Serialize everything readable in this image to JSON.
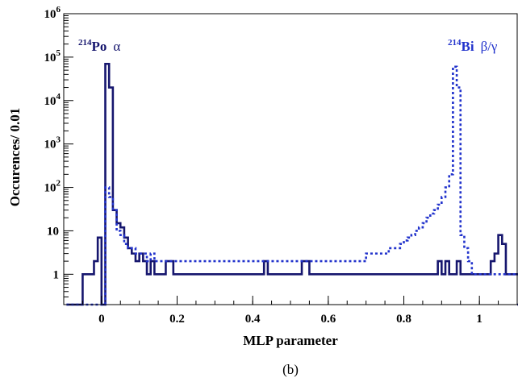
{
  "chart_data": {
    "type": "histogram",
    "xlabel": "MLP parameter",
    "ylabel": "Occurences/ 0.01",
    "caption": "(b)",
    "xlim": [
      -0.1,
      1.1
    ],
    "ylim": [
      0.2,
      1000000
    ],
    "yscale": "log",
    "bin_width": 0.01,
    "x_ticks": [
      "0",
      "0.2",
      "0.4",
      "0.6",
      "0.8",
      "1"
    ],
    "x_tick_values": [
      0,
      0.2,
      0.4,
      0.6,
      0.8,
      1.0
    ],
    "y_ticks": [
      {
        "base": "1",
        "exp": "",
        "value": 1
      },
      {
        "base": "10",
        "exp": "",
        "value": 10
      },
      {
        "base": "10",
        "exp": "2",
        "value": 100
      },
      {
        "base": "10",
        "exp": "3",
        "value": 1000
      },
      {
        "base": "10",
        "exp": "4",
        "value": 10000
      },
      {
        "base": "10",
        "exp": "5",
        "value": 100000
      },
      {
        "base": "10",
        "exp": "6",
        "value": 1000000
      }
    ],
    "annotations": {
      "po": {
        "sup": "214",
        "name": "Po",
        "particle": "α"
      },
      "bi": {
        "sup": "214",
        "name": "Bi",
        "particle": "β/γ"
      }
    },
    "series": [
      {
        "style": "solid",
        "color": "#16166e",
        "x_start": -0.05,
        "values": [
          1,
          1,
          1,
          2,
          7,
          0,
          70000,
          20000,
          30,
          15,
          12,
          7,
          4,
          3,
          2,
          3,
          2,
          1,
          2,
          1,
          1,
          1,
          2,
          2,
          1,
          1,
          1,
          1,
          1,
          1,
          1,
          1,
          1,
          1,
          1,
          1,
          1,
          1,
          1,
          1,
          1,
          1,
          1,
          1,
          1,
          1,
          1,
          1,
          2,
          1,
          1,
          1,
          1,
          1,
          1,
          1,
          1,
          1,
          2,
          2,
          1,
          1,
          1,
          1,
          1,
          1,
          1,
          1,
          1,
          1,
          1,
          1,
          1,
          1,
          1,
          1,
          1,
          1,
          1,
          1,
          1,
          1,
          1,
          1,
          1,
          1,
          1,
          1,
          1,
          1,
          1,
          1,
          1,
          1,
          2,
          1,
          2,
          1,
          1,
          2,
          1,
          1,
          1,
          1,
          1,
          1,
          1,
          1,
          2,
          3,
          8,
          5,
          1,
          1,
          1,
          1,
          1,
          1,
          1,
          1,
          1,
          1,
          1,
          1,
          1
        ]
      },
      {
        "style": "dotted",
        "color": "#2233cc",
        "x_start": -0.05,
        "values": [
          0,
          0,
          0,
          0,
          0,
          0,
          100,
          60,
          30,
          10,
          8,
          5,
          4,
          4,
          3,
          3,
          3,
          2,
          3,
          2,
          2,
          2,
          2,
          2,
          2,
          2,
          2,
          2,
          2,
          2,
          2,
          2,
          2,
          2,
          2,
          2,
          2,
          2,
          2,
          2,
          2,
          2,
          2,
          2,
          2,
          2,
          2,
          2,
          2,
          2,
          2,
          2,
          2,
          2,
          2,
          2,
          2,
          2,
          2,
          2,
          2,
          2,
          2,
          2,
          2,
          2,
          2,
          2,
          2,
          2,
          2,
          2,
          2,
          2,
          2,
          3,
          3,
          3,
          3,
          3,
          3,
          4,
          4,
          4,
          5,
          6,
          7,
          8,
          10,
          12,
          15,
          20,
          25,
          30,
          40,
          60,
          100,
          200,
          60000,
          20000,
          8,
          4,
          2,
          1,
          1,
          1,
          1,
          1,
          1,
          1,
          1,
          1,
          1,
          1,
          1,
          1,
          1,
          1,
          1,
          1,
          1,
          1,
          1,
          1,
          1
        ]
      }
    ]
  }
}
